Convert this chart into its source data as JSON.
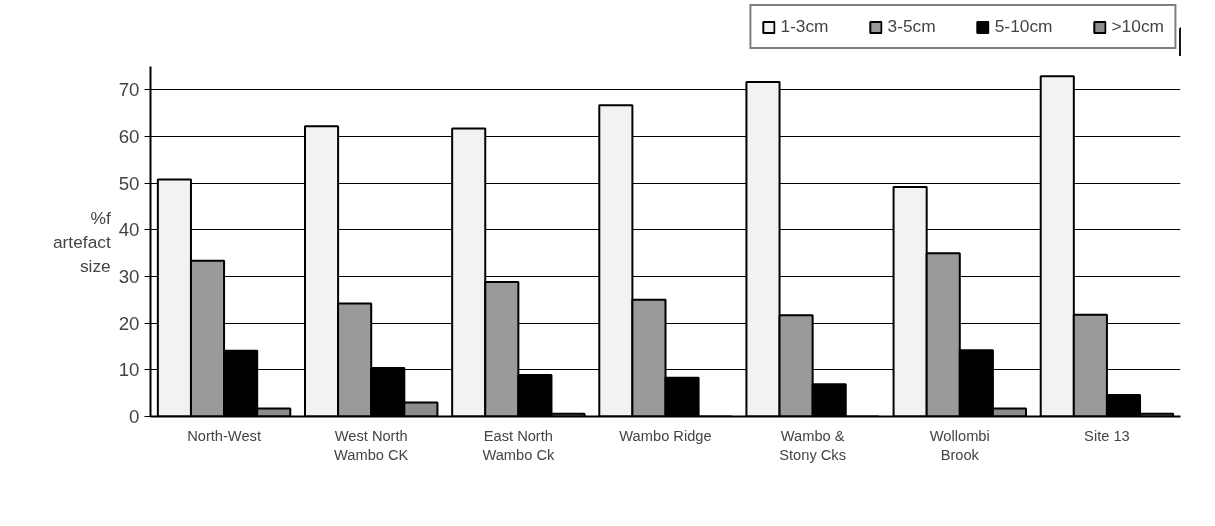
{
  "chart_data": {
    "type": "bar",
    "ylabel": "%f artefact size",
    "categories": [
      "North-West",
      "West North\nWambo CK",
      "East North\nWambo Ck",
      "Wambo Ridge",
      "Wambo &\nStony Cks",
      "Wollombi\nBrook",
      "Site 13"
    ],
    "series": [
      {
        "name": "1-3cm",
        "color": "#f2f2f2",
        "values": [
          50.8,
          62.2,
          61.7,
          66.7,
          71.7,
          49.2,
          72.9
        ]
      },
      {
        "name": "3-5cm",
        "color": "#9a9a9a",
        "values": [
          33.4,
          24.2,
          28.8,
          25.0,
          21.7,
          35.0,
          21.8
        ]
      },
      {
        "name": "5-10cm",
        "color": "#000000",
        "values": [
          14.1,
          10.4,
          8.9,
          8.3,
          6.9,
          14.2,
          4.6
        ]
      },
      {
        "name": ">10cm",
        "color": "#8c8c8c",
        "values": [
          1.7,
          3.0,
          0.6,
          0,
          0,
          1.7,
          0.6
        ]
      }
    ],
    "ylim": [
      0,
      75
    ],
    "yticks": [
      0,
      10,
      20,
      30,
      40,
      50,
      60,
      70
    ],
    "grid": "y",
    "legend": "top right"
  }
}
